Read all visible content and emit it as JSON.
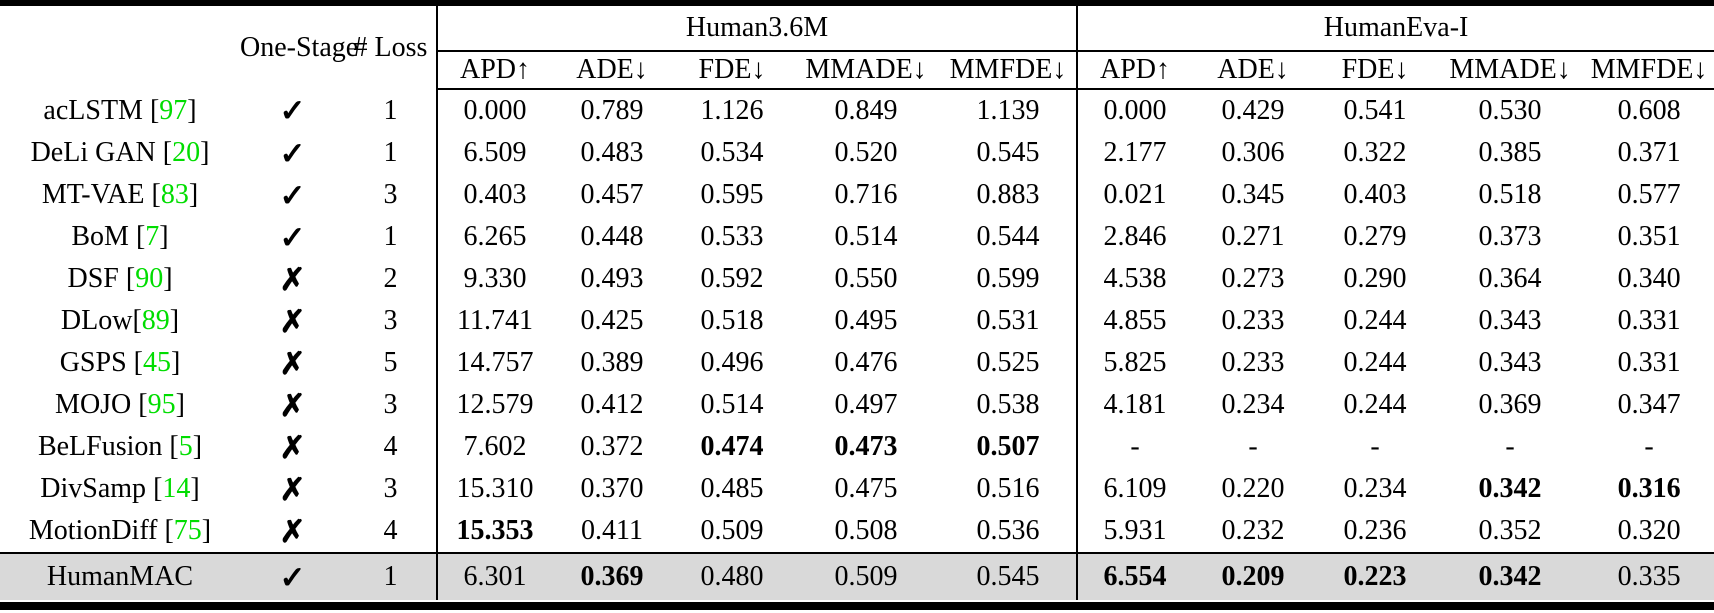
{
  "colors": {
    "reference_green": "#00dd00",
    "highlight_row_bg": "#d9d9d9",
    "rule_black": "#000000"
  },
  "glyphs": {
    "check": "✓",
    "cross": "✗"
  },
  "header": {
    "one_stage": "One-Stage",
    "num_loss": "# Loss",
    "groups": {
      "human36m": "Human3.6M",
      "humaneva": "HumanEva-I"
    },
    "metrics": [
      "APD↑",
      "ADE↓",
      "FDE↓",
      "MMADE↓",
      "MMFDE↓"
    ]
  },
  "rows": [
    {
      "method": "acLSTM ",
      "ref": "97",
      "one_stage": "check",
      "loss": "1",
      "h36m": [
        "0.000",
        "0.789",
        "1.126",
        "0.849",
        "1.139"
      ],
      "bold_h36m": [],
      "heva": [
        "0.000",
        "0.429",
        "0.541",
        "0.530",
        "0.608"
      ],
      "bold_heva": [],
      "highlight": false
    },
    {
      "method": "DeLi GAN ",
      "ref": "20",
      "one_stage": "check",
      "loss": "1",
      "h36m": [
        "6.509",
        "0.483",
        "0.534",
        "0.520",
        "0.545"
      ],
      "bold_h36m": [],
      "heva": [
        "2.177",
        "0.306",
        "0.322",
        "0.385",
        "0.371"
      ],
      "bold_heva": [],
      "highlight": false
    },
    {
      "method": "MT-VAE ",
      "ref": "83",
      "one_stage": "check",
      "loss": "3",
      "h36m": [
        "0.403",
        "0.457",
        "0.595",
        "0.716",
        "0.883"
      ],
      "bold_h36m": [],
      "heva": [
        "0.021",
        "0.345",
        "0.403",
        "0.518",
        "0.577"
      ],
      "bold_heva": [],
      "highlight": false
    },
    {
      "method": "BoM ",
      "ref": "7",
      "one_stage": "check",
      "loss": "1",
      "h36m": [
        "6.265",
        "0.448",
        "0.533",
        "0.514",
        "0.544"
      ],
      "bold_h36m": [],
      "heva": [
        "2.846",
        "0.271",
        "0.279",
        "0.373",
        "0.351"
      ],
      "bold_heva": [],
      "highlight": false
    },
    {
      "method": "DSF ",
      "ref": "90",
      "one_stage": "cross",
      "loss": "2",
      "h36m": [
        "9.330",
        "0.493",
        "0.592",
        "0.550",
        "0.599"
      ],
      "bold_h36m": [],
      "heva": [
        "4.538",
        "0.273",
        "0.290",
        "0.364",
        "0.340"
      ],
      "bold_heva": [],
      "highlight": false
    },
    {
      "method": "DLow",
      "ref": "89",
      "one_stage": "cross",
      "loss": "3",
      "h36m": [
        "11.741",
        "0.425",
        "0.518",
        "0.495",
        "0.531"
      ],
      "bold_h36m": [],
      "heva": [
        "4.855",
        "0.233",
        "0.244",
        "0.343",
        "0.331"
      ],
      "bold_heva": [],
      "highlight": false
    },
    {
      "method": "GSPS ",
      "ref": "45",
      "one_stage": "cross",
      "loss": "5",
      "h36m": [
        "14.757",
        "0.389",
        "0.496",
        "0.476",
        "0.525"
      ],
      "bold_h36m": [],
      "heva": [
        "5.825",
        "0.233",
        "0.244",
        "0.343",
        "0.331"
      ],
      "bold_heva": [],
      "highlight": false
    },
    {
      "method": "MOJO ",
      "ref": "95",
      "one_stage": "cross",
      "loss": "3",
      "h36m": [
        "12.579",
        "0.412",
        "0.514",
        "0.497",
        "0.538"
      ],
      "bold_h36m": [],
      "heva": [
        "4.181",
        "0.234",
        "0.244",
        "0.369",
        "0.347"
      ],
      "bold_heva": [],
      "highlight": false
    },
    {
      "method": "BeLFusion ",
      "ref": "5",
      "one_stage": "cross",
      "loss": "4",
      "h36m": [
        "7.602",
        "0.372",
        "0.474",
        "0.473",
        "0.507"
      ],
      "bold_h36m": [
        2,
        3,
        4
      ],
      "heva": [
        "-",
        "-",
        "-",
        "-",
        "-"
      ],
      "bold_heva": [],
      "highlight": false
    },
    {
      "method": "DivSamp ",
      "ref": "14",
      "one_stage": "cross",
      "loss": "3",
      "h36m": [
        "15.310",
        "0.370",
        "0.485",
        "0.475",
        "0.516"
      ],
      "bold_h36m": [],
      "heva": [
        "6.109",
        "0.220",
        "0.234",
        "0.342",
        "0.316"
      ],
      "bold_heva": [
        3,
        4
      ],
      "highlight": false
    },
    {
      "method": "MotionDiff ",
      "ref": "75",
      "one_stage": "cross",
      "loss": "4",
      "h36m": [
        "15.353",
        "0.411",
        "0.509",
        "0.508",
        "0.536"
      ],
      "bold_h36m": [
        0
      ],
      "heva": [
        "5.931",
        "0.232",
        "0.236",
        "0.352",
        "0.320"
      ],
      "bold_heva": [],
      "highlight": false
    },
    {
      "method": "HumanMAC",
      "ref": null,
      "one_stage": "check",
      "loss": "1",
      "h36m": [
        "6.301",
        "0.369",
        "0.480",
        "0.509",
        "0.545"
      ],
      "bold_h36m": [
        1
      ],
      "heva": [
        "6.554",
        "0.209",
        "0.223",
        "0.342",
        "0.335"
      ],
      "bold_heva": [
        0,
        1,
        2,
        3
      ],
      "highlight": true
    }
  ]
}
